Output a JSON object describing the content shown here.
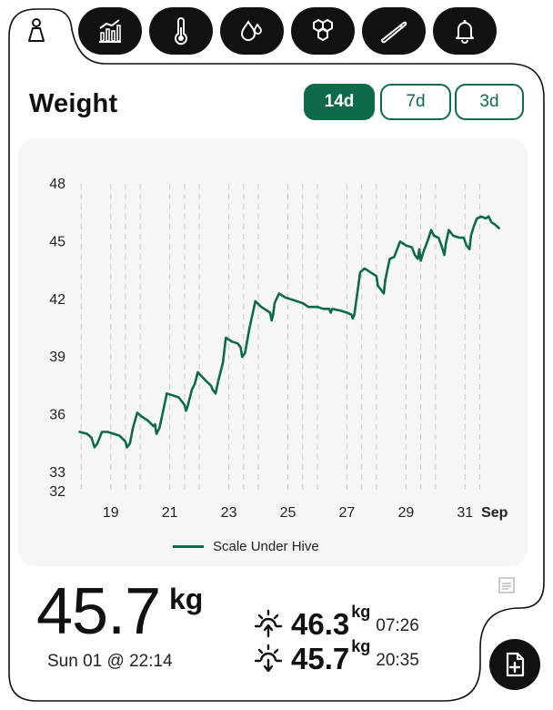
{
  "colors": {
    "accent": "#0e6b47",
    "dark": "#111111",
    "chart_bg": "#f6f6f6"
  },
  "tabs": [
    {
      "icon": "scale-icon",
      "active": true
    },
    {
      "icon": "chart-icon",
      "active": false
    },
    {
      "icon": "thermometer-icon",
      "active": false
    },
    {
      "icon": "humidity-icon",
      "active": false
    },
    {
      "icon": "honeycomb-icon",
      "active": false
    },
    {
      "icon": "hive-tool-icon",
      "active": false
    },
    {
      "icon": "bell-icon",
      "active": false
    }
  ],
  "header": {
    "title": "Weight"
  },
  "ranges": [
    {
      "label": "14d",
      "active": true
    },
    {
      "label": "7d",
      "active": false
    },
    {
      "label": "3d",
      "active": false
    }
  ],
  "chart_data": {
    "type": "line",
    "title": "",
    "xlabel": "",
    "ylabel": "",
    "ylim": [
      32,
      48
    ],
    "yticks": [
      "48",
      "45",
      "42",
      "39",
      "36",
      "33",
      "32"
    ],
    "xlim": [
      17.9,
      32.5
    ],
    "xticks": [
      {
        "x": 19,
        "label": "19",
        "bold": false
      },
      {
        "x": 21,
        "label": "21",
        "bold": false
      },
      {
        "x": 23,
        "label": "23",
        "bold": false
      },
      {
        "x": 25,
        "label": "25",
        "bold": false
      },
      {
        "x": 27,
        "label": "27",
        "bold": false
      },
      {
        "x": 29,
        "label": "29",
        "bold": false
      },
      {
        "x": 31,
        "label": "31",
        "bold": false
      },
      {
        "x": 32,
        "label": "Sep",
        "bold": true
      }
    ],
    "grid_x": [
      18,
      19,
      19.5,
      20,
      21,
      21.5,
      22,
      23,
      23.5,
      24,
      25,
      25.5,
      26,
      27,
      27.5,
      28,
      29,
      29.5,
      30,
      31,
      31.5
    ],
    "legend": "Scale Under Hive",
    "series": [
      {
        "name": "Scale Under Hive",
        "points": [
          [
            17.95,
            35.1
          ],
          [
            18.2,
            35.0
          ],
          [
            18.35,
            34.8
          ],
          [
            18.45,
            34.3
          ],
          [
            18.55,
            34.5
          ],
          [
            18.7,
            35.1
          ],
          [
            18.9,
            35.1
          ],
          [
            19.1,
            35.0
          ],
          [
            19.3,
            34.9
          ],
          [
            19.5,
            34.6
          ],
          [
            19.55,
            34.3
          ],
          [
            19.65,
            34.5
          ],
          [
            19.75,
            35.3
          ],
          [
            19.9,
            36.1
          ],
          [
            20.05,
            35.9
          ],
          [
            20.25,
            35.7
          ],
          [
            20.45,
            35.4
          ],
          [
            20.5,
            35.5
          ],
          [
            20.55,
            35.0
          ],
          [
            20.65,
            35.3
          ],
          [
            20.75,
            36.0
          ],
          [
            20.9,
            37.1
          ],
          [
            21.1,
            37.0
          ],
          [
            21.3,
            36.9
          ],
          [
            21.45,
            36.6
          ],
          [
            21.5,
            36.5
          ],
          [
            21.55,
            36.2
          ],
          [
            21.6,
            36.4
          ],
          [
            21.75,
            37.3
          ],
          [
            21.85,
            37.6
          ],
          [
            21.95,
            38.2
          ],
          [
            22.2,
            37.8
          ],
          [
            22.4,
            37.5
          ],
          [
            22.45,
            37.3
          ],
          [
            22.55,
            37.1
          ],
          [
            22.65,
            37.8
          ],
          [
            22.8,
            38.7
          ],
          [
            22.9,
            40.0
          ],
          [
            23.1,
            39.8
          ],
          [
            23.3,
            39.7
          ],
          [
            23.4,
            39.5
          ],
          [
            23.45,
            39.0
          ],
          [
            23.55,
            39.2
          ],
          [
            23.7,
            40.5
          ],
          [
            23.9,
            41.9
          ],
          [
            24.1,
            41.6
          ],
          [
            24.3,
            41.4
          ],
          [
            24.4,
            41.3
          ],
          [
            24.45,
            40.9
          ],
          [
            24.5,
            41.2
          ],
          [
            24.55,
            41.8
          ],
          [
            24.7,
            42.3
          ],
          [
            24.9,
            42.1
          ],
          [
            25.1,
            42.0
          ],
          [
            25.3,
            41.9
          ],
          [
            25.5,
            41.8
          ],
          [
            25.7,
            41.6
          ],
          [
            26.0,
            41.6
          ],
          [
            26.2,
            41.5
          ],
          [
            26.4,
            41.5
          ],
          [
            26.45,
            41.3
          ],
          [
            26.5,
            41.5
          ],
          [
            26.8,
            41.4
          ],
          [
            27.0,
            41.3
          ],
          [
            27.15,
            41.2
          ],
          [
            27.2,
            41.0
          ],
          [
            27.25,
            41.2
          ],
          [
            27.45,
            43.4
          ],
          [
            27.6,
            43.6
          ],
          [
            27.8,
            43.4
          ],
          [
            28.0,
            43.2
          ],
          [
            28.05,
            42.7
          ],
          [
            28.15,
            42.5
          ],
          [
            28.25,
            42.3
          ],
          [
            28.3,
            43.0
          ],
          [
            28.45,
            44.1
          ],
          [
            28.6,
            44.2
          ],
          [
            28.8,
            45.0
          ],
          [
            29.0,
            44.8
          ],
          [
            29.2,
            44.7
          ],
          [
            29.3,
            44.3
          ],
          [
            29.4,
            44.1
          ],
          [
            29.45,
            44.6
          ],
          [
            29.5,
            44.0
          ],
          [
            29.6,
            44.5
          ],
          [
            29.75,
            45.1
          ],
          [
            29.85,
            45.6
          ],
          [
            29.95,
            45.3
          ],
          [
            30.1,
            45.2
          ],
          [
            30.2,
            44.8
          ],
          [
            30.3,
            44.3
          ],
          [
            30.35,
            44.9
          ],
          [
            30.45,
            45.6
          ],
          [
            30.6,
            45.3
          ],
          [
            30.8,
            45.2
          ],
          [
            30.95,
            45.2
          ],
          [
            31.05,
            44.8
          ],
          [
            31.15,
            44.6
          ],
          [
            31.2,
            45.3
          ],
          [
            31.3,
            45.8
          ],
          [
            31.4,
            46.2
          ],
          [
            31.55,
            46.3
          ],
          [
            31.7,
            46.2
          ],
          [
            31.8,
            46.3
          ],
          [
            31.9,
            46.0
          ],
          [
            32.0,
            45.9
          ],
          [
            32.15,
            45.7
          ]
        ]
      }
    ]
  },
  "current": {
    "value": "45.7",
    "unit": "kg",
    "datetime": "Sun 01 @ 22:14"
  },
  "max": {
    "icon": "sunrise-icon",
    "value": "46.3",
    "unit": "kg",
    "time": "07:26"
  },
  "min": {
    "icon": "sunset-icon",
    "value": "45.7",
    "unit": "kg",
    "time": "20:35"
  },
  "actions": {
    "report_icon": "add-document-icon",
    "export_icon": "export-chart-icon"
  }
}
